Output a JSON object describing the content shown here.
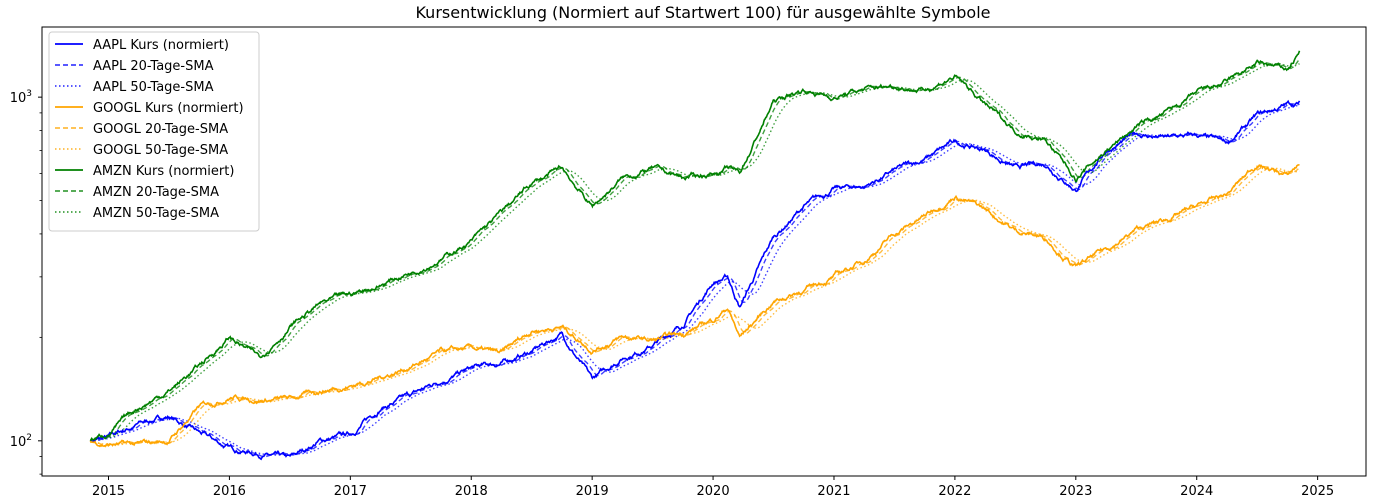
{
  "chart_data": {
    "type": "line",
    "title": "Kursentwicklung (Normiert auf Startwert 100) für ausgewählte Symbole",
    "xlabel": "",
    "ylabel": "",
    "yscale": "log",
    "xlim": [
      2014.45,
      2025.4
    ],
    "ylim": [
      79,
      1600
    ],
    "x_ticks": [
      {
        "value": 2015,
        "label": "2015"
      },
      {
        "value": 2016,
        "label": "2016"
      },
      {
        "value": 2017,
        "label": "2017"
      },
      {
        "value": 2018,
        "label": "2018"
      },
      {
        "value": 2019,
        "label": "2019"
      },
      {
        "value": 2020,
        "label": "2020"
      },
      {
        "value": 2021,
        "label": "2021"
      },
      {
        "value": 2022,
        "label": "2022"
      },
      {
        "value": 2023,
        "label": "2023"
      },
      {
        "value": 2024,
        "label": "2024"
      },
      {
        "value": 2025,
        "label": "2025"
      }
    ],
    "y_ticks": [
      {
        "value": 100,
        "base": "10",
        "exp": "2"
      },
      {
        "value": 1000,
        "base": "10",
        "exp": "3"
      }
    ],
    "y_minor_ticks": [
      80,
      90,
      200,
      300,
      400,
      500,
      600,
      700,
      800,
      900
    ],
    "legend_position": "upper-left",
    "colors": {
      "AAPL": "#0000ff",
      "GOOGL": "#ffa500",
      "AMZN": "#008000"
    },
    "series_x": [
      2014.85,
      2015.0,
      2015.25,
      2015.5,
      2015.75,
      2016.0,
      2016.25,
      2016.5,
      2016.75,
      2017.0,
      2017.25,
      2017.5,
      2017.75,
      2018.0,
      2018.25,
      2018.5,
      2018.75,
      2019.0,
      2019.25,
      2019.5,
      2019.75,
      2020.0,
      2020.12,
      2020.22,
      2020.5,
      2020.75,
      2021.0,
      2021.25,
      2021.5,
      2021.75,
      2022.0,
      2022.25,
      2022.5,
      2022.75,
      2023.0,
      2023.25,
      2023.5,
      2023.75,
      2024.0,
      2024.25,
      2024.5,
      2024.75,
      2024.85
    ],
    "series": [
      {
        "name": "AAPL Kurs (normiert)",
        "symbol": "AAPL",
        "kind": "price",
        "values": [
          100,
          102,
          112,
          118,
          105,
          95,
          92,
          88,
          100,
          104,
          125,
          135,
          150,
          162,
          168,
          182,
          205,
          150,
          175,
          190,
          218,
          290,
          300,
          245,
          390,
          480,
          540,
          550,
          610,
          660,
          740,
          700,
          620,
          640,
          540,
          700,
          780,
          760,
          770,
          730,
          880,
          950,
          960
        ]
      },
      {
        "name": "AAPL 20-Tage-SMA",
        "symbol": "AAPL",
        "kind": "sma20"
      },
      {
        "name": "AAPL 50-Tage-SMA",
        "symbol": "AAPL",
        "kind": "sma50"
      },
      {
        "name": "GOOGL Kurs (normiert)",
        "symbol": "GOOGL",
        "kind": "price",
        "values": [
          100,
          98,
          97,
          100,
          125,
          135,
          132,
          132,
          140,
          145,
          153,
          165,
          180,
          185,
          178,
          210,
          215,
          185,
          200,
          195,
          205,
          225,
          245,
          200,
          255,
          275,
          300,
          335,
          400,
          450,
          520,
          470,
          410,
          390,
          320,
          360,
          410,
          440,
          480,
          520,
          640,
          590,
          640
        ]
      },
      {
        "name": "GOOGL 20-Tage-SMA",
        "symbol": "GOOGL",
        "kind": "sma20"
      },
      {
        "name": "GOOGL 50-Tage-SMA",
        "symbol": "GOOGL",
        "kind": "sma50"
      },
      {
        "name": "AMZN Kurs (normiert)",
        "symbol": "AMZN",
        "kind": "price",
        "values": [
          100,
          105,
          125,
          140,
          165,
          200,
          175,
          215,
          250,
          265,
          285,
          310,
          340,
          380,
          460,
          560,
          620,
          480,
          580,
          620,
          580,
          600,
          620,
          600,
          970,
          1050,
          1000,
          1050,
          1080,
          1050,
          1150,
          950,
          800,
          750,
          580,
          700,
          820,
          900,
          1020,
          1100,
          1250,
          1200,
          1350
        ]
      },
      {
        "name": "AMZN 20-Tage-SMA",
        "symbol": "AMZN",
        "kind": "sma20"
      },
      {
        "name": "AMZN 50-Tage-SMA",
        "symbol": "AMZN",
        "kind": "sma50"
      }
    ]
  }
}
